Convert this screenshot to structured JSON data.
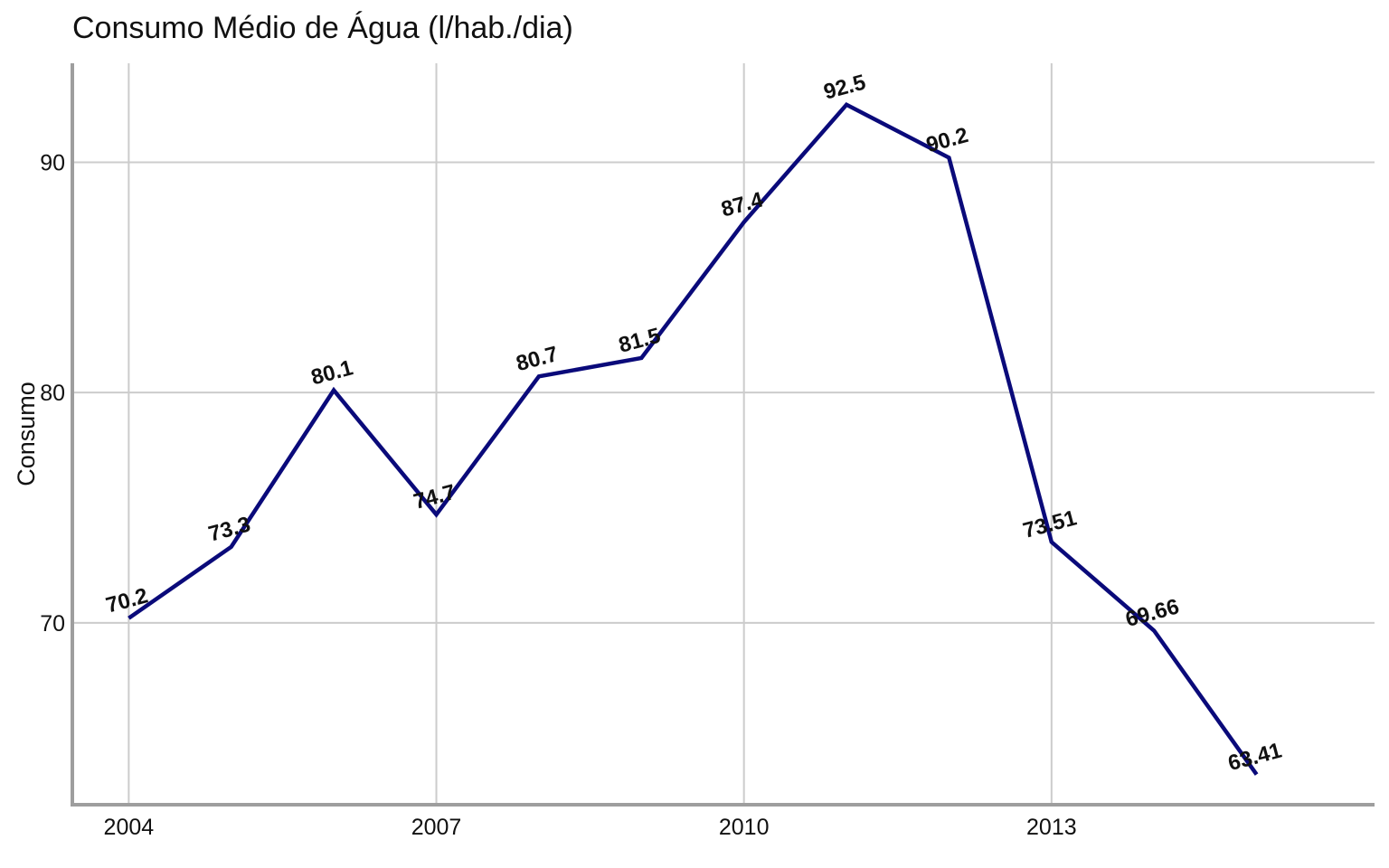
{
  "chart_data": {
    "type": "line",
    "title": "Consumo Médio de Água (l/hab./dia)",
    "xlabel": "",
    "ylabel": "Consumo",
    "x": [
      2004,
      2005,
      2006,
      2007,
      2008,
      2009,
      2010,
      2011,
      2012,
      2013,
      2014,
      2015
    ],
    "series": [
      {
        "values": [
          70.2,
          73.3,
          80.1,
          74.7,
          80.7,
          81.5,
          87.4,
          92.5,
          90.2,
          73.51,
          69.66,
          63.41
        ],
        "labels": [
          "70.2",
          "73.3",
          "80.1",
          "74.7",
          "80.7",
          "81.5",
          "87.4",
          "92.5",
          "90.2",
          "73.51",
          "69.66",
          "63.41"
        ]
      }
    ],
    "xticks": [
      2004,
      2007,
      2010,
      2013
    ],
    "xtick_labels": [
      "2004",
      "2007",
      "2010",
      "2013"
    ],
    "yticks": [
      70,
      80,
      90
    ],
    "ytick_labels": [
      "70",
      "80",
      "90"
    ],
    "xlim": [
      2003.45,
      2016.15
    ],
    "ylim": [
      62.1,
      94.3
    ],
    "grid": true,
    "colors": {
      "line": "#0a0a7a",
      "grid": "#cccccc",
      "axis": "#9e9e9e",
      "text": "#111111"
    }
  }
}
